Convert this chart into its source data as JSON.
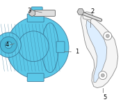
{
  "bg_color": "#ffffff",
  "alt_fill": "#5bc8e8",
  "alt_stroke": "#3a7a9a",
  "brk_fill": "#f5f5f5",
  "brk_stroke": "#888888",
  "label_color": "#000000",
  "lc": "#666666",
  "lw": 0.6,
  "figsize": [
    2.0,
    1.47
  ],
  "dpi": 100
}
